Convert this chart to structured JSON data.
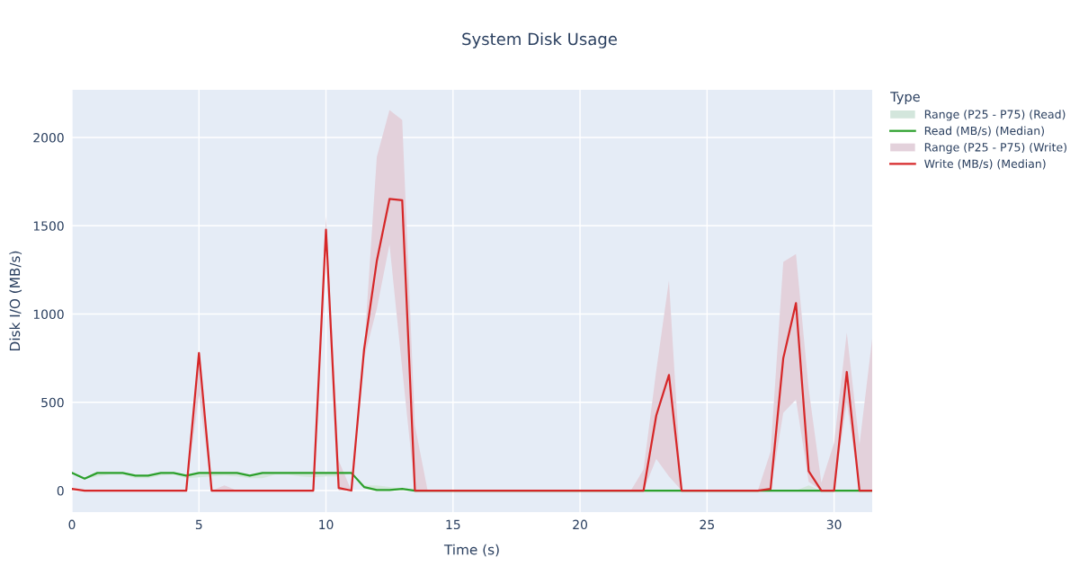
{
  "chart_data": {
    "type": "line",
    "title": "System Disk Usage",
    "xlabel": "Time (s)",
    "ylabel": "Disk I/O (MB/s)",
    "legend_title": "Type",
    "x": [
      0,
      0.5,
      1,
      1.5,
      2,
      2.5,
      3,
      3.5,
      4,
      4.5,
      5,
      5.5,
      6,
      6.5,
      7,
      7.5,
      8,
      8.5,
      9,
      9.5,
      10,
      10.5,
      11,
      11.5,
      12,
      12.5,
      13,
      13.5,
      14,
      14.5,
      15,
      15.5,
      16,
      16.5,
      17,
      17.5,
      18,
      18.5,
      19,
      19.5,
      20,
      20.5,
      21,
      21.5,
      22,
      22.5,
      23,
      23.5,
      24,
      24.5,
      25,
      25.5,
      26,
      26.5,
      27,
      27.5,
      28,
      28.5,
      29,
      29.5,
      30,
      30.5,
      31,
      31.5
    ],
    "series": [
      {
        "name": "Range (P25 - P75) (Read)",
        "type": "area",
        "color": "#d3e6dc",
        "values": [
          null,
          null,
          null,
          null,
          null,
          null,
          null,
          null,
          null,
          null,
          null,
          null,
          null,
          null,
          null,
          null,
          null,
          null,
          null,
          null,
          null,
          null,
          null,
          null,
          null,
          null,
          null,
          null,
          null,
          null,
          null,
          null,
          null,
          null,
          null,
          null,
          null,
          null,
          null,
          null,
          null,
          null,
          null,
          null,
          null,
          null,
          null,
          null,
          null,
          null,
          null,
          null,
          null,
          null,
          null,
          null,
          null,
          null,
          null,
          null,
          null,
          null,
          null,
          null
        ]
      },
      {
        "name": "Read (MB/s) (Median)",
        "color": "#2ca02c",
        "values": [
          100,
          68,
          100,
          100,
          100,
          85,
          85,
          100,
          100,
          85,
          100,
          100,
          100,
          100,
          85,
          100,
          100,
          100,
          100,
          100,
          100,
          100,
          100,
          20,
          3,
          3,
          10,
          0,
          0,
          0,
          0,
          0,
          0,
          0,
          0,
          0,
          0,
          0,
          0,
          0,
          0,
          0,
          0,
          0,
          0,
          0,
          0,
          0,
          0,
          0,
          0,
          0,
          0,
          0,
          0,
          0,
          0,
          0,
          0,
          0,
          0,
          0,
          0,
          0
        ],
        "lower": [
          95,
          65,
          80,
          90,
          90,
          70,
          70,
          85,
          90,
          70,
          75,
          80,
          85,
          80,
          70,
          70,
          90,
          90,
          80,
          75,
          80,
          80,
          100,
          15,
          0,
          0,
          5,
          0,
          0,
          0,
          0,
          0,
          0,
          0,
          0,
          0,
          0,
          0,
          0,
          0,
          0,
          0,
          0,
          0,
          0,
          0,
          0,
          0,
          0,
          0,
          0,
          0,
          0,
          0,
          0,
          0,
          0,
          0,
          0,
          0,
          0,
          0,
          0,
          0
        ],
        "upper": [
          100,
          70,
          100,
          100,
          100,
          85,
          85,
          100,
          100,
          85,
          100,
          100,
          100,
          100,
          85,
          100,
          100,
          100,
          100,
          100,
          100,
          100,
          100,
          30,
          30,
          20,
          10,
          0,
          0,
          0,
          0,
          0,
          0,
          0,
          0,
          0,
          0,
          0,
          0,
          0,
          0,
          0,
          0,
          0,
          0,
          0,
          0,
          0,
          0,
          0,
          0,
          0,
          0,
          0,
          0,
          0,
          0,
          0,
          30,
          0,
          0,
          0,
          0,
          0
        ]
      },
      {
        "name": "Range (P25 - P75) (Write)",
        "type": "area",
        "color": "#e3d1db",
        "values": [
          null,
          null,
          null,
          null,
          null,
          null,
          null,
          null,
          null,
          null,
          null,
          null,
          null,
          null,
          null,
          null,
          null,
          null,
          null,
          null,
          null,
          null,
          null,
          null,
          null,
          null,
          null,
          null,
          null,
          null,
          null,
          null,
          null,
          null,
          null,
          null,
          null,
          null,
          null,
          null,
          null,
          null,
          null,
          null,
          null,
          null,
          null,
          null,
          null,
          null,
          null,
          null,
          null,
          null,
          null,
          null,
          null,
          null,
          null,
          null,
          null,
          null,
          null,
          null
        ]
      },
      {
        "name": "Write (MB/s) (Median)",
        "color": "#d62728",
        "values": [
          10,
          0,
          0,
          0,
          0,
          0,
          0,
          0,
          0,
          0,
          780,
          0,
          0,
          0,
          0,
          0,
          0,
          0,
          0,
          0,
          1478,
          15,
          0,
          800,
          1300,
          1652,
          1645,
          0,
          0,
          0,
          0,
          0,
          0,
          0,
          0,
          0,
          0,
          0,
          0,
          0,
          0,
          0,
          0,
          0,
          0,
          0,
          425,
          655,
          0,
          0,
          0,
          0,
          0,
          0,
          0,
          10,
          750,
          1062,
          110,
          0,
          0,
          672,
          0,
          0
        ],
        "lower": [
          0,
          0,
          0,
          0,
          0,
          0,
          0,
          0,
          0,
          0,
          540,
          0,
          0,
          0,
          0,
          0,
          0,
          0,
          0,
          0,
          1450,
          0,
          0,
          750,
          1030,
          1395,
          690,
          0,
          0,
          0,
          0,
          0,
          0,
          0,
          0,
          0,
          0,
          0,
          0,
          0,
          0,
          0,
          0,
          0,
          0,
          0,
          180,
          80,
          0,
          0,
          0,
          0,
          0,
          0,
          0,
          0,
          440,
          515,
          50,
          0,
          0,
          500,
          0,
          0
        ],
        "upper": [
          10,
          0,
          0,
          0,
          0,
          0,
          0,
          0,
          0,
          0,
          790,
          0,
          30,
          0,
          0,
          0,
          0,
          0,
          0,
          0,
          1555,
          170,
          0,
          795,
          1890,
          2155,
          2100,
          370,
          0,
          0,
          0,
          0,
          0,
          0,
          0,
          0,
          0,
          0,
          0,
          0,
          0,
          0,
          0,
          0,
          0,
          120,
          680,
          1190,
          0,
          0,
          0,
          0,
          0,
          0,
          0,
          220,
          1295,
          1340,
          575,
          45,
          270,
          895,
          260,
          860
        ]
      }
    ],
    "xlim": [
      0,
      31.5
    ],
    "ylim": [
      -122,
      2270
    ],
    "xticks": [
      0,
      5,
      10,
      15,
      20,
      25,
      30
    ],
    "yticks": [
      0,
      500,
      1000,
      1500,
      2000
    ],
    "grid": true,
    "legend": "right",
    "line_style": "solid",
    "marker": "none"
  }
}
